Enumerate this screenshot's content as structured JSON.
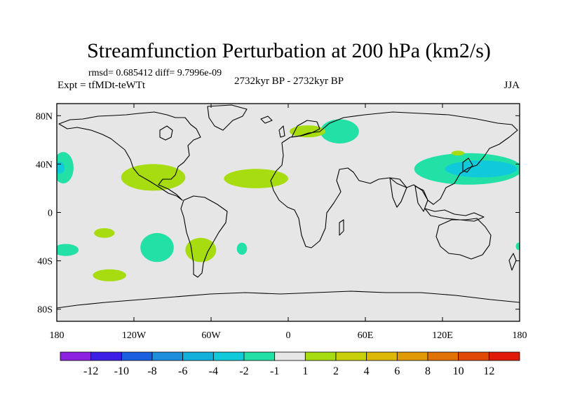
{
  "chart_data": {
    "type": "heatmap",
    "projection": "cylindrical-equidistant",
    "title": "Streamfunction Perturbation at 200 hPa (km2/s)",
    "stats_text": "rmsd= 0.685412 diff= 9.7996e-09",
    "left_subtitle": "Expt = tfMDt-teWTt",
    "center_subtitle": "2732kyr BP - 2732kyr BP",
    "right_subtitle": "JJA",
    "lon_range": [
      -180,
      180
    ],
    "lat_range": [
      -90,
      90
    ],
    "x_ticks": [
      {
        "value": -180,
        "label": "180"
      },
      {
        "value": -120,
        "label": "120W"
      },
      {
        "value": -60,
        "label": "60W"
      },
      {
        "value": 0,
        "label": "0"
      },
      {
        "value": 60,
        "label": "60E"
      },
      {
        "value": 120,
        "label": "120E"
      },
      {
        "value": 180,
        "label": "180"
      }
    ],
    "y_ticks": [
      {
        "value": 80,
        "label": "80N"
      },
      {
        "value": 40,
        "label": "40N"
      },
      {
        "value": 0,
        "label": "0"
      },
      {
        "value": -40,
        "label": "40S"
      },
      {
        "value": -80,
        "label": "80S"
      }
    ],
    "colorbar": {
      "colors": [
        "#8b22e0",
        "#3c1ee6",
        "#1a5fe0",
        "#1e8fdc",
        "#14b0dc",
        "#10cadc",
        "#22e0a6",
        "#e6e6e6",
        "#a6dc10",
        "#c8d00a",
        "#dcb808",
        "#e09a06",
        "#e07206",
        "#e04a06",
        "#e01a06"
      ],
      "labels": [
        "-12",
        "-10",
        "-8",
        "-6",
        "-4",
        "-2",
        "-1",
        "1",
        "2",
        "4",
        "6",
        "8",
        "10",
        "12"
      ]
    },
    "background_color": "#e6e6e6",
    "contours": [
      {
        "level": "-1..-2",
        "color": "#22e0a6",
        "center_lon": 40,
        "center_lat": 67,
        "radius_lon": 15,
        "radius_lat": 10
      },
      {
        "level": "-1..-2",
        "color": "#22e0a6",
        "center_lon": 140,
        "center_lat": 36,
        "radius_lon": 42,
        "radius_lat": 13
      },
      {
        "level": "-2..-4",
        "color": "#10cadc",
        "center_lon": 150,
        "center_lat": 36,
        "radius_lon": 28,
        "radius_lat": 7
      },
      {
        "level": "-1..-2",
        "color": "#22e0a6",
        "center_lon": -175,
        "center_lat": 37,
        "radius_lon": 8,
        "radius_lat": 13
      },
      {
        "level": "-2..-4",
        "color": "#10cadc",
        "center_lon": -178,
        "center_lat": 37,
        "radius_lon": 4,
        "radius_lat": 5
      },
      {
        "level": "-1..-2",
        "color": "#22e0a6",
        "center_lon": -102,
        "center_lat": -29,
        "radius_lon": 13,
        "radius_lat": 12
      },
      {
        "level": "-1..-2",
        "color": "#22e0a6",
        "center_lon": -173,
        "center_lat": -31,
        "radius_lon": 10,
        "radius_lat": 5
      },
      {
        "level": "-1..-2",
        "color": "#22e0a6",
        "center_lon": -36,
        "center_lat": -30,
        "radius_lon": 4,
        "radius_lat": 5
      },
      {
        "level": "-1..-2",
        "color": "#22e0a6",
        "center_lon": 179,
        "center_lat": -28,
        "radius_lon": 2,
        "radius_lat": 3
      },
      {
        "level": "1..2",
        "color": "#a6dc10",
        "center_lon": -105,
        "center_lat": 29,
        "radius_lon": 25,
        "radius_lat": 11
      },
      {
        "level": "1..2",
        "color": "#a6dc10",
        "center_lon": -25,
        "center_lat": 28,
        "radius_lon": 25,
        "radius_lat": 8
      },
      {
        "level": "1..2",
        "color": "#a6dc10",
        "center_lon": 15,
        "center_lat": 67,
        "radius_lon": 14,
        "radius_lat": 5
      },
      {
        "level": "1..2",
        "color": "#a6dc10",
        "center_lon": 132,
        "center_lat": 49,
        "radius_lon": 5,
        "radius_lat": 2
      },
      {
        "level": "1..2",
        "color": "#a6dc10",
        "center_lon": -143,
        "center_lat": -17,
        "radius_lon": 8,
        "radius_lat": 4
      },
      {
        "level": "1..2",
        "color": "#a6dc10",
        "center_lon": -68,
        "center_lat": -31,
        "radius_lon": 12,
        "radius_lat": 10
      },
      {
        "level": "1..2",
        "color": "#a6dc10",
        "center_lon": -139,
        "center_lat": -52,
        "radius_lon": 13,
        "radius_lat": 5
      }
    ]
  }
}
